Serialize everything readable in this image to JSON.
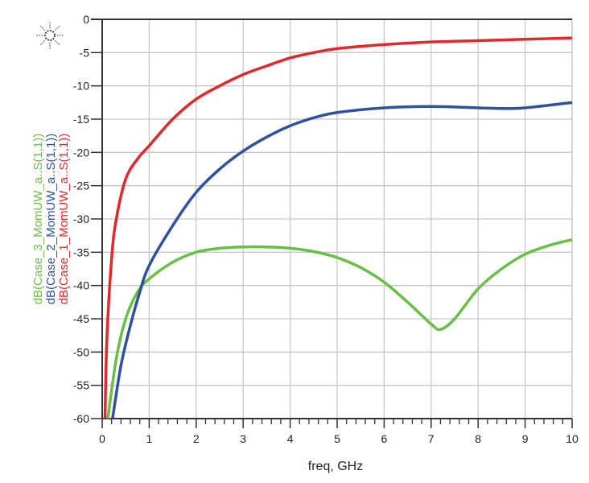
{
  "chart_data": {
    "type": "line",
    "title": "",
    "xlabel": "freq, GHz",
    "ylabel": "",
    "xlim": [
      0,
      10
    ],
    "ylim": [
      -60,
      0
    ],
    "grid": true,
    "x_ticks": [
      "0",
      "1",
      "2",
      "3",
      "4",
      "5",
      "6",
      "7",
      "8",
      "9",
      "10"
    ],
    "y_ticks": [
      "0",
      "-5",
      "-10",
      "-15",
      "-20",
      "-25",
      "-30",
      "-35",
      "-40",
      "-45",
      "-50",
      "-55",
      "-60"
    ],
    "legend_placement": "left-vertical",
    "series": [
      {
        "name": "dB(Case_3_MomUW_a..S(1,1))",
        "color": "#6abf45",
        "x": [
          0.12,
          0.3,
          0.5,
          0.75,
          1,
          1.5,
          2,
          2.5,
          3,
          3.5,
          4,
          4.5,
          5,
          5.5,
          6,
          6.5,
          7,
          7.2,
          7.5,
          8,
          8.5,
          9,
          9.5,
          10
        ],
        "y": [
          -60,
          -51,
          -45,
          -41,
          -39,
          -36.5,
          -35,
          -34.4,
          -34.2,
          -34.2,
          -34.4,
          -34.9,
          -35.8,
          -37.3,
          -39.5,
          -42.5,
          -45.8,
          -46.6,
          -45,
          -40.5,
          -37.5,
          -35.3,
          -34,
          -33.1
        ]
      },
      {
        "name": "dB(Case_2_MomUW_a..S(1,1))",
        "color": "#3050a0",
        "x": [
          0.22,
          0.4,
          0.6,
          0.8,
          1,
          1.5,
          2,
          2.5,
          3,
          3.5,
          4,
          4.5,
          5,
          6,
          7,
          8,
          8.5,
          9,
          10
        ],
        "y": [
          -60,
          -52,
          -46,
          -41,
          -37,
          -31,
          -26,
          -22.5,
          -19.8,
          -17.7,
          -16,
          -14.8,
          -14,
          -13.3,
          -13.1,
          -13.3,
          -13.4,
          -13.3,
          -12.5
        ]
      },
      {
        "name": "dB(Case_1_MomUW_a..S(1,1))",
        "color": "#e02a2a",
        "x": [
          0.06,
          0.1,
          0.2,
          0.3,
          0.5,
          0.75,
          1,
          1.5,
          2,
          2.5,
          3,
          3.5,
          4,
          4.5,
          5,
          6,
          7,
          8,
          9,
          10
        ],
        "y": [
          -60,
          -48,
          -36,
          -30,
          -24,
          -21,
          -19,
          -15,
          -12,
          -10,
          -8.3,
          -7,
          -5.8,
          -5,
          -4.4,
          -3.8,
          -3.4,
          -3.2,
          -3,
          -2.8
        ]
      }
    ]
  }
}
